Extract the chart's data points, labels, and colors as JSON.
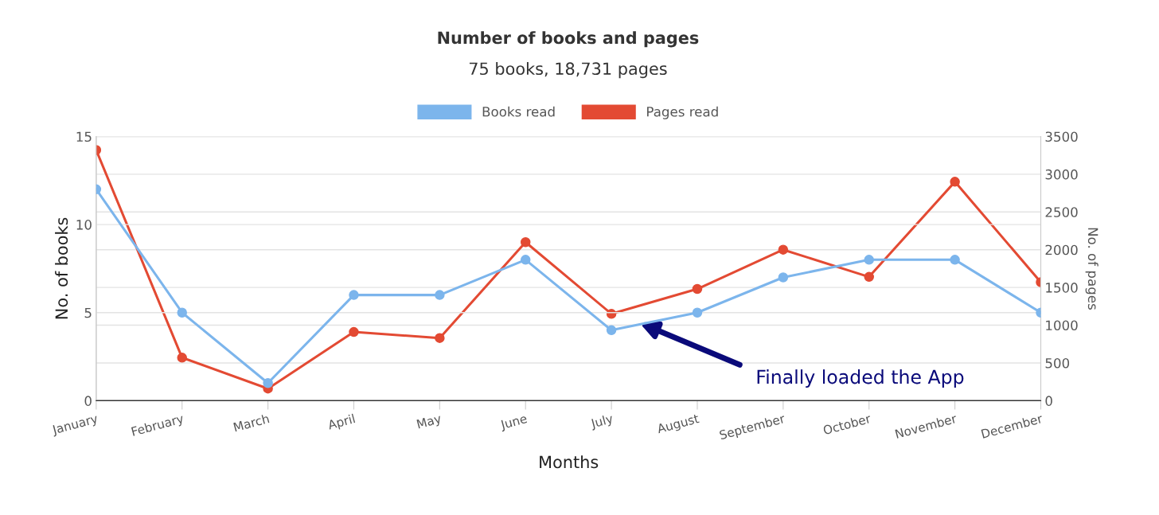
{
  "chart_data": {
    "type": "line",
    "title": "Number of books and pages",
    "subtitle": "75 books, 18,731 pages",
    "xlabel": "Months",
    "ylabel": "No. of books",
    "y2label": "No. of pages",
    "categories": [
      "January",
      "February",
      "March",
      "April",
      "May",
      "June",
      "July",
      "August",
      "September",
      "October",
      "November",
      "December"
    ],
    "series": [
      {
        "name": "Books read",
        "color": "#7cb5ec",
        "values": [
          12,
          5,
          1,
          6,
          6,
          8,
          4,
          5,
          7,
          8,
          8,
          5
        ]
      },
      {
        "name": "Pages read",
        "color": "#e34a33",
        "axis": "y2",
        "values": [
          3320,
          570,
          160,
          910,
          830,
          2100,
          1150,
          1480,
          2000,
          1640,
          2900,
          1570
        ]
      }
    ],
    "ylim": [
      0,
      15
    ],
    "yticks": [
      0,
      5,
      10,
      15
    ],
    "y2lim": [
      0,
      3500
    ],
    "y2ticks": [
      0,
      500,
      1000,
      1500,
      2000,
      2500,
      3000,
      3500
    ],
    "grid": true,
    "legend": "top",
    "marker": "circle",
    "line_style": "solid",
    "annotations": [
      "Finally loaded the App"
    ]
  }
}
